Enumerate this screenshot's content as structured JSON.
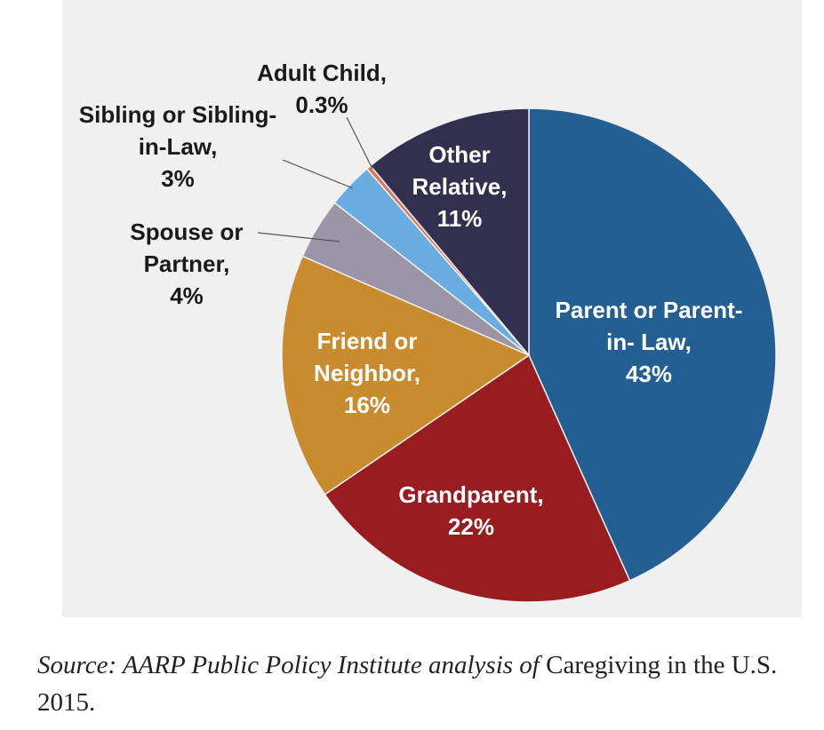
{
  "chart_data": {
    "type": "pie",
    "categories": [
      "Parent or Parent-in- Law,",
      "Grandparent,",
      "Friend or Neighbor,",
      "Spouse or Partner,",
      "Sibling or Sibling-in-Law,",
      "Adult Child,",
      "Other Relative,"
    ],
    "values": [
      43,
      22,
      16,
      4,
      3,
      0.3,
      11
    ],
    "value_labels": [
      "43%",
      "22%",
      "16%",
      "4%",
      "3%",
      "0.3%",
      "11%"
    ],
    "colors": [
      "#235f93",
      "#991c21",
      "#c88b2e",
      "#9c95a8",
      "#69ade0",
      "#e0735a",
      "#33304f"
    ]
  },
  "source": {
    "italic": "Source: AARP Public Policy Institute analysis of",
    "normal": "Caregiving in the U.S. 2015."
  }
}
